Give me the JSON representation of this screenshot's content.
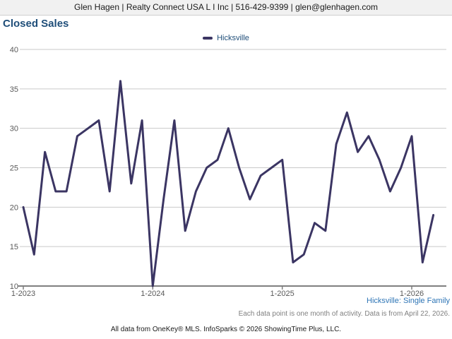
{
  "header": {
    "text": "Glen Hagen | Realty Connect USA L I Inc | 516-429-9399 | glen@glenhagen.com"
  },
  "title": "Closed Sales",
  "legend": {
    "label": "Hicksville"
  },
  "footer": {
    "series_note": "Hicksville: Single Family",
    "data_note": "Each data point is one month of activity. Data is from April 22, 2026.",
    "attribution": "All data from OneKey® MLS. InfoSparks © 2026 ShowingTime Plus, LLC."
  },
  "colors": {
    "line": "#3b3563",
    "title_blue": "#1f4e79",
    "note_blue": "#2e75b6",
    "grid": "#c9c9c9",
    "axis": "#7f7f7f",
    "axis_label": "#595959",
    "header_bg": "#f1f1f1"
  },
  "chart_data": {
    "type": "line",
    "title": "Closed Sales",
    "legend_position": "top-center",
    "grid": "horizontal",
    "ylim": [
      10,
      40
    ],
    "y_ticks": [
      10,
      15,
      20,
      25,
      30,
      35,
      40
    ],
    "x_tick_labels": [
      "1-2023",
      "1-2024",
      "1-2025",
      "1-2026"
    ],
    "x_tick_indices": [
      0,
      12,
      24,
      36
    ],
    "x": [
      "1-2023",
      "2-2023",
      "3-2023",
      "4-2023",
      "5-2023",
      "6-2023",
      "7-2023",
      "8-2023",
      "9-2023",
      "10-2023",
      "11-2023",
      "12-2023",
      "1-2024",
      "2-2024",
      "3-2024",
      "4-2024",
      "5-2024",
      "6-2024",
      "7-2024",
      "8-2024",
      "9-2024",
      "10-2024",
      "11-2024",
      "12-2024",
      "1-2025",
      "2-2025",
      "3-2025",
      "4-2025",
      "5-2025",
      "6-2025",
      "7-2025",
      "8-2025",
      "9-2025",
      "10-2025",
      "11-2025",
      "12-2025",
      "1-2026",
      "2-2026",
      "3-2026"
    ],
    "series": [
      {
        "name": "Hicksville",
        "values": [
          20,
          14,
          27,
          22,
          22,
          29,
          30,
          31,
          22,
          36,
          23,
          31,
          10,
          21,
          31,
          17,
          22,
          25,
          26,
          30,
          25,
          21,
          24,
          25,
          26,
          13,
          14,
          18,
          17,
          28,
          32,
          27,
          29,
          26,
          22,
          25,
          29,
          13,
          19
        ]
      }
    ]
  }
}
